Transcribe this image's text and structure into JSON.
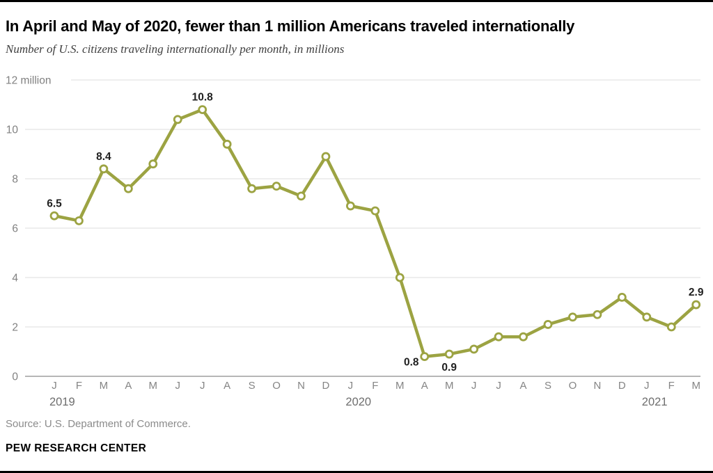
{
  "chart_data": {
    "type": "line",
    "title": "In April and May of 2020, fewer than 1 million Americans traveled internationally",
    "subtitle": "Number of U.S. citizens traveling internationally per month, in millions",
    "x_tick_labels": [
      "J",
      "F",
      "M",
      "A",
      "M",
      "J",
      "J",
      "A",
      "S",
      "O",
      "N",
      "D",
      "J",
      "F",
      "M",
      "A",
      "M",
      "J",
      "J",
      "A",
      "S",
      "O",
      "N",
      "D",
      "J",
      "F",
      "M"
    ],
    "year_labels": [
      {
        "label": "2019",
        "month_index": 0
      },
      {
        "label": "2020",
        "month_index": 12
      },
      {
        "label": "2021",
        "month_index": 24
      }
    ],
    "series": [
      {
        "name": "U.S. citizens traveling internationally per month (millions)",
        "values": [
          6.5,
          6.3,
          8.4,
          7.6,
          8.6,
          10.4,
          10.8,
          9.4,
          7.6,
          7.7,
          7.3,
          8.9,
          6.9,
          6.7,
          4.0,
          0.8,
          0.9,
          1.1,
          1.6,
          1.6,
          2.1,
          2.4,
          2.5,
          3.2,
          2.4,
          2.0,
          2.9
        ]
      }
    ],
    "point_labels": [
      {
        "month_index": 0,
        "label": "6.5",
        "placement": "above"
      },
      {
        "month_index": 2,
        "label": "8.4",
        "placement": "above"
      },
      {
        "month_index": 6,
        "label": "10.8",
        "placement": "above"
      },
      {
        "month_index": 15,
        "label": "0.8",
        "placement": "below-left"
      },
      {
        "month_index": 16,
        "label": "0.9",
        "placement": "below"
      },
      {
        "month_index": 26,
        "label": "2.9",
        "placement": "above"
      }
    ],
    "xlabel": "",
    "ylabel": "",
    "ylim": [
      0,
      12
    ],
    "y_ticks": [
      0,
      2,
      4,
      6,
      8,
      10,
      12
    ],
    "y_tick_labels": [
      "0",
      "2",
      "4",
      "6",
      "8",
      "10",
      "12 million"
    ],
    "grid": true,
    "legend": "none",
    "colors": {
      "line": "#9ca342",
      "marker_fill": "#ffffff",
      "grid": "#dcdcdc",
      "baseline": "#9e9e9e",
      "axis_text": "#818181",
      "data_label": "#1f1f1f"
    }
  },
  "footer": {
    "source": "Source: U.S. Department of Commerce.",
    "brand": "PEW RESEARCH CENTER"
  }
}
